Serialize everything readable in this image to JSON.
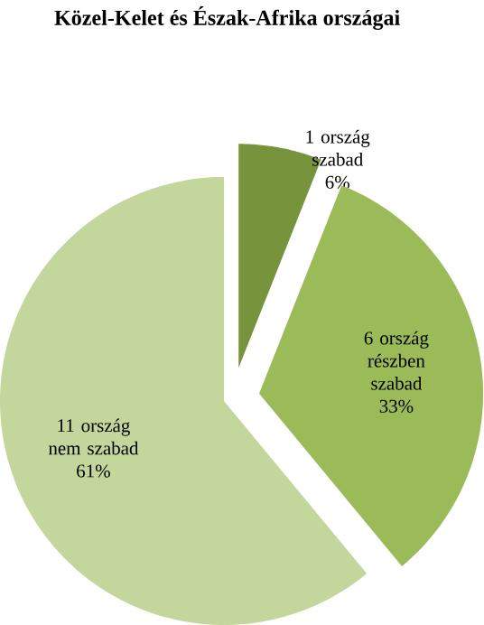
{
  "chart_data": {
    "type": "pie",
    "title": "Közel-Kelet és Észak-Afrika országai",
    "categories": [
      "1 ország szabad",
      "6 ország részben szabad",
      "11 ország nem szabad"
    ],
    "values": [
      6,
      33,
      61
    ],
    "value_labels": [
      "6%",
      "33%",
      "61%"
    ],
    "colors": [
      "#77933c",
      "#9bbb59",
      "#c3d69b"
    ]
  }
}
